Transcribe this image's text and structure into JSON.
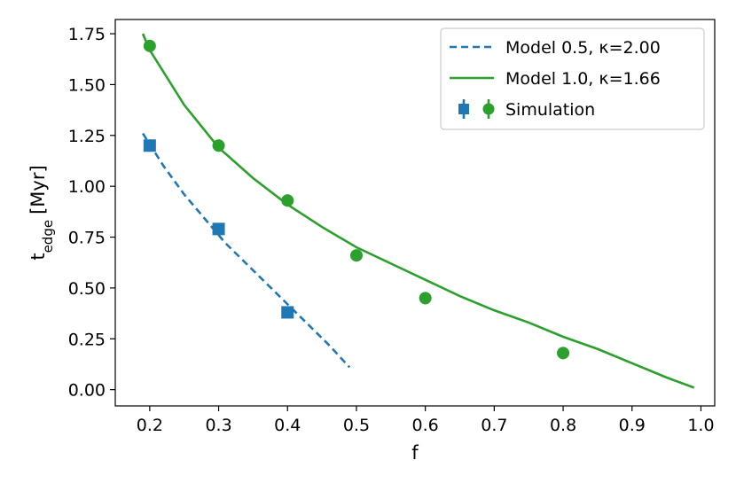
{
  "chart_data": {
    "type": "line",
    "xlabel": "f",
    "ylabel": "t",
    "ylabel_subscript": "edge",
    "ylabel_unit": "[Myr]",
    "xlim": [
      0.15,
      1.02
    ],
    "ylim": [
      -0.08,
      1.82
    ],
    "xticks": [
      0.2,
      0.3,
      0.4,
      0.5,
      0.6,
      0.7,
      0.8,
      0.9,
      1.0
    ],
    "xtick_labels": [
      "0.2",
      "0.3",
      "0.4",
      "0.5",
      "0.6",
      "0.7",
      "0.8",
      "0.9",
      "1.0"
    ],
    "yticks": [
      0.0,
      0.25,
      0.5,
      0.75,
      1.0,
      1.25,
      1.5,
      1.75
    ],
    "ytick_labels": [
      "0.00",
      "0.25",
      "0.50",
      "0.75",
      "1.00",
      "1.25",
      "1.50",
      "1.75"
    ],
    "grid": false,
    "legend_position": "top-right",
    "series": [
      {
        "name": "Model 0.5, κ=2.00",
        "kind": "line",
        "style": "dashed",
        "color": "#1f77b4",
        "x": [
          0.19,
          0.22,
          0.25,
          0.28,
          0.31,
          0.34,
          0.37,
          0.4,
          0.43,
          0.46,
          0.49
        ],
        "y": [
          1.26,
          1.1,
          0.96,
          0.84,
          0.72,
          0.62,
          0.52,
          0.42,
          0.32,
          0.22,
          0.11
        ]
      },
      {
        "name": "Model 1.0, κ=1.66",
        "kind": "line",
        "style": "solid",
        "color": "#2ca02c",
        "x": [
          0.19,
          0.2,
          0.25,
          0.3,
          0.35,
          0.4,
          0.45,
          0.5,
          0.55,
          0.6,
          0.65,
          0.7,
          0.75,
          0.8,
          0.85,
          0.9,
          0.95,
          0.99
        ],
        "y": [
          1.75,
          1.67,
          1.4,
          1.19,
          1.04,
          0.91,
          0.8,
          0.7,
          0.62,
          0.54,
          0.46,
          0.39,
          0.33,
          0.26,
          0.2,
          0.13,
          0.06,
          0.01
        ]
      },
      {
        "name": "Simulation",
        "kind": "scatter",
        "marker": "square",
        "color": "#1f77b4",
        "x": [
          0.2,
          0.3,
          0.4
        ],
        "y": [
          1.2,
          0.79,
          0.38
        ],
        "yerr": [
          0.03,
          0.03,
          0.03
        ]
      },
      {
        "name": "Simulation",
        "kind": "scatter",
        "marker": "circle",
        "color": "#2ca02c",
        "x": [
          0.2,
          0.3,
          0.4,
          0.5,
          0.6,
          0.8
        ],
        "y": [
          1.69,
          1.2,
          0.93,
          0.66,
          0.45,
          0.18
        ],
        "yerr": [
          0.03,
          0.03,
          0.03,
          0.03,
          0.03,
          0.03
        ]
      }
    ],
    "legend": [
      {
        "label": "Model 0.5, κ=2.00",
        "symbol": "dashed-line",
        "color": "#1f77b4"
      },
      {
        "label": "Model 1.0, κ=1.66",
        "symbol": "solid-line",
        "color": "#2ca02c"
      },
      {
        "label": "Simulation",
        "symbol": "square-and-circle",
        "colors": [
          "#1f77b4",
          "#2ca02c"
        ]
      }
    ]
  }
}
